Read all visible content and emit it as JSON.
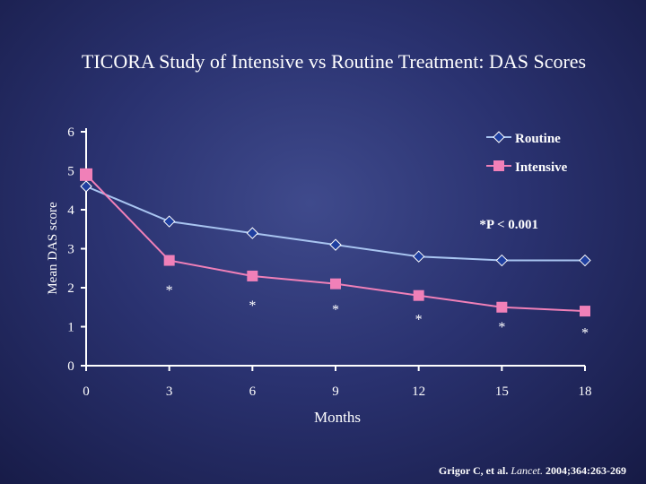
{
  "slide": {
    "title": "TICORA Study of Intensive vs Routine Treatment: DAS Scores",
    "citation_authors": "Grigor C, et al.",
    "citation_journal": "Lancet.",
    "citation_ref": "2004;364:263-269"
  },
  "chart_data": {
    "type": "line",
    "title": "",
    "xlabel": "Months",
    "ylabel": "Mean DAS score",
    "x": [
      0,
      3,
      6,
      9,
      12,
      15,
      18
    ],
    "xticks": [
      "0",
      "3",
      "6",
      "9",
      "12",
      "15",
      "18"
    ],
    "yticks": [
      "0",
      "1",
      "2",
      "3",
      "4",
      "5",
      "6"
    ],
    "xlim": [
      0,
      18
    ],
    "ylim": [
      0,
      6
    ],
    "grid": false,
    "legend_position": "top-right",
    "series": [
      {
        "name": "Routine",
        "marker": "diamond",
        "line_color": "#a8c4f0",
        "marker_color": "#1f3fa0",
        "values": [
          4.6,
          3.7,
          3.4,
          3.1,
          2.8,
          2.7,
          2.7
        ]
      },
      {
        "name": "Intensive",
        "marker": "square",
        "line_color": "#f080b8",
        "marker_color": "#f080b8",
        "values": [
          4.9,
          2.7,
          2.3,
          2.1,
          1.8,
          1.5,
          1.4
        ]
      }
    ],
    "significance_note": "*P < 0.001",
    "significance_marks": [
      {
        "x": 3,
        "y": 2.05,
        "label": "*"
      },
      {
        "x": 6,
        "y": 1.65,
        "label": "*"
      },
      {
        "x": 9,
        "y": 1.55,
        "label": "*"
      },
      {
        "x": 12,
        "y": 1.3,
        "label": "*"
      },
      {
        "x": 15,
        "y": 1.1,
        "label": "*"
      },
      {
        "x": 18,
        "y": 0.95,
        "label": "*"
      }
    ]
  }
}
